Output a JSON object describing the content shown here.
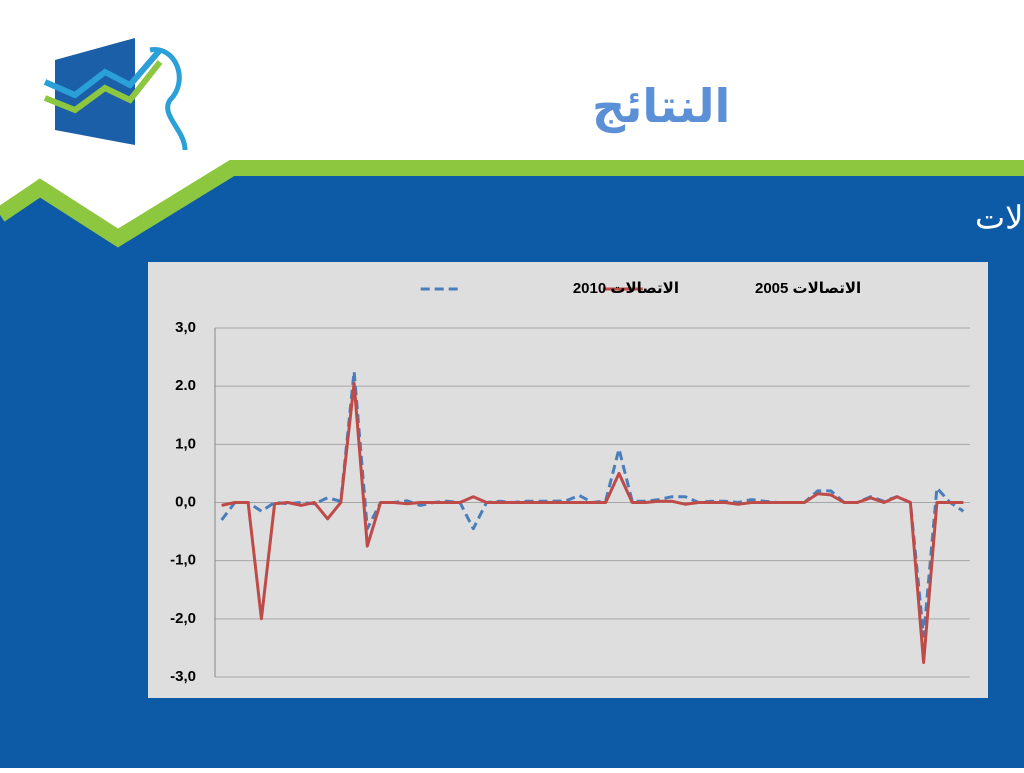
{
  "slide": {
    "title": "النتائج",
    "subtitle": "التغيير السنوي لمجموعة ألاتصالات"
  },
  "chart_data": {
    "type": "line",
    "categories": [
      null,
      null,
      null,
      null,
      null,
      null,
      null,
      null,
      null,
      null,
      null,
      null,
      null,
      null,
      null,
      null,
      null,
      null,
      null,
      null,
      null,
      null,
      null,
      null,
      null,
      null,
      null,
      null,
      null,
      null,
      null,
      null,
      null,
      null,
      null,
      null,
      null,
      null,
      null,
      null,
      null,
      null,
      null,
      null,
      null,
      null,
      null,
      null,
      null,
      null,
      null,
      null,
      null,
      null,
      null,
      null,
      null
    ],
    "series": [
      {
        "name": "الاتصالات 2010",
        "color": "#4a7ebb",
        "dashed": true,
        "values": [
          -0.3,
          0,
          0,
          -0.15,
          0,
          -0.02,
          0,
          -0.02,
          0.08,
          0.02,
          2.25,
          -0.45,
          0,
          0,
          0.03,
          -0.05,
          0,
          0.02,
          0,
          -0.45,
          0,
          0.02,
          0,
          0.02,
          0.02,
          0.02,
          0.03,
          0.12,
          0,
          0.03,
          0.92,
          0.02,
          0.02,
          0.05,
          0.1,
          0.1,
          0,
          0.02,
          0.02,
          0,
          0.05,
          0.02,
          0,
          0,
          0,
          0.2,
          0.2,
          0,
          0,
          0.1,
          0.02,
          0.1,
          0,
          -2.3,
          0.25,
          0,
          -0.15
        ]
      },
      {
        "name": "الاتصالات 2005",
        "color": "#be4b48",
        "dashed": false,
        "values": [
          -0.05,
          0,
          0,
          -2.0,
          -0.02,
          0,
          -0.05,
          0,
          -0.28,
          0,
          2.05,
          -0.75,
          0,
          0,
          -0.02,
          0,
          0,
          0,
          0,
          0.1,
          0,
          0,
          0,
          0,
          0,
          0,
          0,
          0,
          0,
          0,
          0.5,
          0,
          0,
          0.02,
          0.02,
          -0.03,
          0,
          0,
          0,
          -0.03,
          0,
          0,
          0,
          0,
          0,
          0.15,
          0.13,
          0,
          0,
          0.08,
          0,
          0.1,
          0,
          -2.75,
          0,
          0,
          0
        ]
      }
    ],
    "ylim": [
      -3,
      3
    ],
    "yticks": [
      {
        "value": 3,
        "label": "3,0"
      },
      {
        "value": 2,
        "label": "2.0"
      },
      {
        "value": 1,
        "label": "1,0"
      },
      {
        "value": 0,
        "label": "0,0"
      },
      {
        "value": -1,
        "label": "-1,0"
      },
      {
        "value": -2,
        "label": "-2,0"
      },
      {
        "value": -3,
        "label": "-3,0"
      }
    ],
    "grid": true,
    "legend": "top"
  }
}
